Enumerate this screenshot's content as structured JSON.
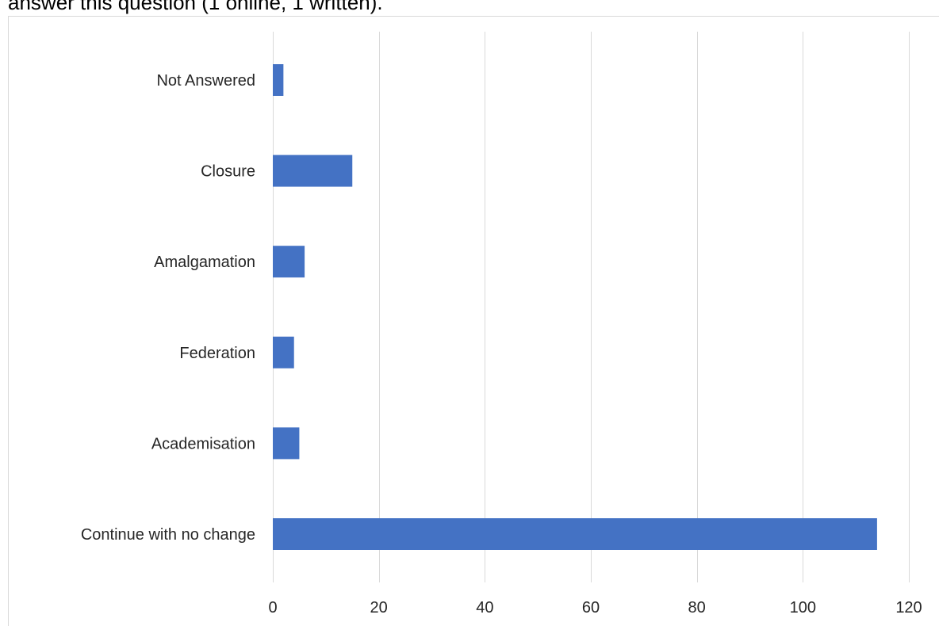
{
  "caption": "answer this question (1 online, 1 written).",
  "chart_data": {
    "type": "bar",
    "orientation": "horizontal",
    "categories": [
      "Not Answered",
      "Closure",
      "Amalgamation",
      "Federation",
      "Academisation",
      "Continue with no change"
    ],
    "values": [
      2,
      15,
      6,
      4,
      5,
      114
    ],
    "xlim": [
      0,
      120
    ],
    "xticks": [
      0,
      20,
      40,
      60,
      80,
      100,
      120
    ],
    "xtick_labels": [
      "0",
      "20",
      "40",
      "60",
      "80",
      "100",
      "120"
    ],
    "grid": "vertical",
    "bar_color": "#4472c4",
    "gridline_color": "#d9d9d9",
    "title": "",
    "xlabel": "",
    "ylabel": ""
  }
}
